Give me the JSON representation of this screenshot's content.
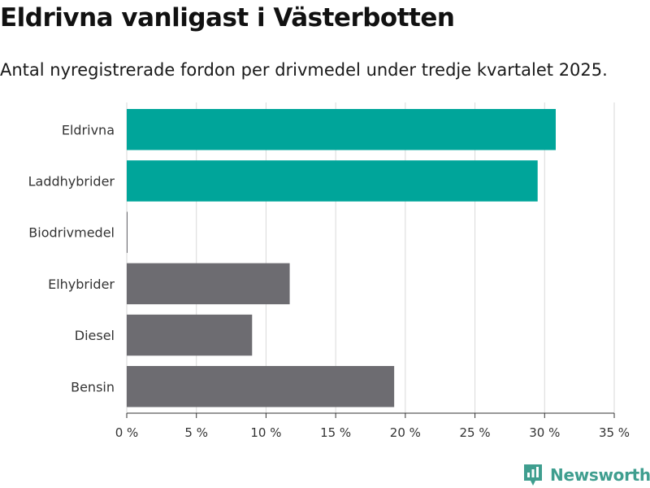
{
  "header": {
    "title": "Eldrivna vanligast i Västerbotten",
    "subtitle": "Antal nyregistrerade fordon per drivmedel under tredje kvartalet 2025."
  },
  "brand": {
    "name": "Newsworthy",
    "color": "#3f9e8f"
  },
  "chart_data": {
    "type": "bar",
    "orientation": "horizontal",
    "title": "Eldrivna vanligast i Västerbotten",
    "subtitle": "Antal nyregistrerade fordon per drivmedel under tredje kvartalet 2025.",
    "categories": [
      "Eldrivna",
      "Laddhybrider",
      "Biodrivmedel",
      "Elhybrider",
      "Diesel",
      "Bensin"
    ],
    "values": [
      30.8,
      29.5,
      0.05,
      11.7,
      9.0,
      19.2
    ],
    "colors": [
      "#00a59a",
      "#00a59a",
      "#6d6c71",
      "#6d6c71",
      "#6d6c71",
      "#6d6c71"
    ],
    "xlabel": "",
    "ylabel": "",
    "xlim": [
      0,
      35
    ],
    "ticks": [
      0,
      5,
      10,
      15,
      20,
      25,
      30,
      35
    ],
    "tick_labels": [
      "0 %",
      "5 %",
      "10 %",
      "15 %",
      "20 %",
      "25 %",
      "30 %",
      "35 %"
    ],
    "grid": true
  }
}
